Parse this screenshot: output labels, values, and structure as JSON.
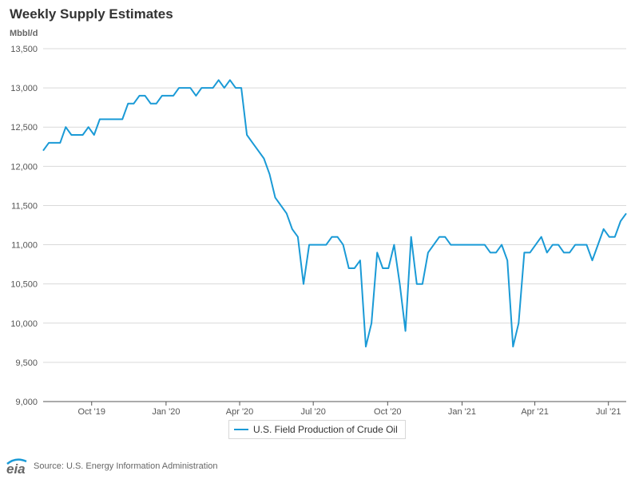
{
  "title": "Weekly Supply Estimates",
  "unit": "Mbbl/d",
  "legend_label": "U.S. Field Production of Crude Oil",
  "source": "Source: U.S. Energy Information Administration",
  "logo_text": "eia",
  "colors": {
    "series": "#1a9ad6",
    "grid": "#d9d9d9",
    "axis": "#555555"
  },
  "chart_data": {
    "type": "line",
    "title": "Weekly Supply Estimates",
    "ylabel": "Mbbl/d",
    "ylim": [
      9000,
      13500
    ],
    "yticks": [
      9000,
      9500,
      10000,
      10500,
      11000,
      11500,
      12000,
      12500,
      13000,
      13500
    ],
    "ytick_labels": [
      "9,000",
      "9,500",
      "10,000",
      "10,500",
      "11,000",
      "11,500",
      "12,000",
      "12,500",
      "13,000",
      "13,500"
    ],
    "x_domain": [
      "2019-08-02",
      "2021-07-23"
    ],
    "xticks": [
      "2019-10-01",
      "2020-01-01",
      "2020-04-01",
      "2020-07-01",
      "2020-10-01",
      "2021-01-01",
      "2021-04-01",
      "2021-07-01"
    ],
    "xtick_labels": [
      "Oct '19",
      "Jan '20",
      "Apr '20",
      "Jul '20",
      "Oct '20",
      "Jan '21",
      "Apr '21",
      "Jul '21"
    ],
    "grid": "horizontal",
    "legend_position": "bottom",
    "series": [
      {
        "name": "U.S. Field Production of Crude Oil",
        "x": [
          "2019-08-02",
          "2019-08-09",
          "2019-08-16",
          "2019-08-23",
          "2019-08-30",
          "2019-09-06",
          "2019-09-13",
          "2019-09-20",
          "2019-09-27",
          "2019-10-04",
          "2019-10-11",
          "2019-10-18",
          "2019-10-25",
          "2019-11-01",
          "2019-11-08",
          "2019-11-15",
          "2019-11-22",
          "2019-11-29",
          "2019-12-06",
          "2019-12-13",
          "2019-12-20",
          "2019-12-27",
          "2020-01-03",
          "2020-01-10",
          "2020-01-17",
          "2020-01-24",
          "2020-01-31",
          "2020-02-07",
          "2020-02-14",
          "2020-02-21",
          "2020-02-28",
          "2020-03-06",
          "2020-03-13",
          "2020-03-20",
          "2020-03-27",
          "2020-04-03",
          "2020-04-10",
          "2020-04-17",
          "2020-04-24",
          "2020-05-01",
          "2020-05-08",
          "2020-05-15",
          "2020-05-22",
          "2020-05-29",
          "2020-06-05",
          "2020-06-12",
          "2020-06-19",
          "2020-06-26",
          "2020-07-03",
          "2020-07-10",
          "2020-07-17",
          "2020-07-24",
          "2020-07-31",
          "2020-08-07",
          "2020-08-14",
          "2020-08-21",
          "2020-08-28",
          "2020-09-04",
          "2020-09-11",
          "2020-09-18",
          "2020-09-25",
          "2020-10-02",
          "2020-10-09",
          "2020-10-16",
          "2020-10-23",
          "2020-10-30",
          "2020-11-06",
          "2020-11-13",
          "2020-11-20",
          "2020-11-27",
          "2020-12-04",
          "2020-12-11",
          "2020-12-18",
          "2020-12-25",
          "2021-01-01",
          "2021-01-08",
          "2021-01-15",
          "2021-01-22",
          "2021-01-29",
          "2021-02-05",
          "2021-02-12",
          "2021-02-19",
          "2021-02-26",
          "2021-03-05",
          "2021-03-12",
          "2021-03-19",
          "2021-03-26",
          "2021-04-02",
          "2021-04-09",
          "2021-04-16",
          "2021-04-23",
          "2021-04-30",
          "2021-05-07",
          "2021-05-14",
          "2021-05-21",
          "2021-05-28",
          "2021-06-04",
          "2021-06-11",
          "2021-06-18",
          "2021-06-25",
          "2021-07-02",
          "2021-07-09",
          "2021-07-16",
          "2021-07-23"
        ],
        "values": [
          12200,
          12300,
          12300,
          12300,
          12500,
          12400,
          12400,
          12400,
          12500,
          12400,
          12600,
          12600,
          12600,
          12600,
          12600,
          12800,
          12800,
          12900,
          12900,
          12800,
          12800,
          12900,
          12900,
          12900,
          13000,
          13000,
          13000,
          12900,
          13000,
          13000,
          13000,
          13100,
          13000,
          13100,
          13000,
          13000,
          12400,
          12300,
          12200,
          12100,
          11900,
          11600,
          11500,
          11400,
          11200,
          11100,
          10500,
          11000,
          11000,
          11000,
          11000,
          11100,
          11100,
          11000,
          10700,
          10700,
          10800,
          9700,
          10000,
          10900,
          10700,
          10700,
          11000,
          10500,
          9900,
          11100,
          10500,
          10500,
          10900,
          11000,
          11100,
          11100,
          11000,
          11000,
          11000,
          11000,
          11000,
          11000,
          11000,
          10900,
          10900,
          11000,
          10800,
          9700,
          10000,
          10900,
          10900,
          11000,
          11100,
          10900,
          11000,
          11000,
          10900,
          10900,
          11000,
          11000,
          11000,
          10800,
          11000,
          11200,
          11100,
          11100,
          11300,
          11400
        ]
      }
    ]
  }
}
